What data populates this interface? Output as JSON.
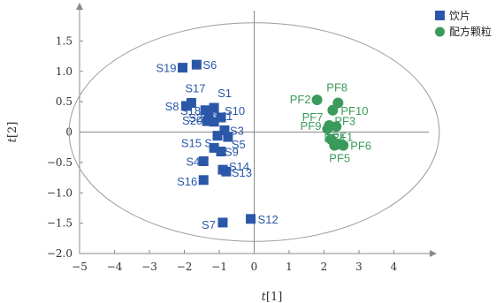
{
  "chart_data": {
    "type": "scatter",
    "xlabel": "t[1]",
    "ylabel": "t[2]",
    "xlim": [
      -5,
      5
    ],
    "ylim": [
      -2.0,
      2.0
    ],
    "xticks": [
      -5,
      -4,
      -3,
      -2,
      -1,
      0,
      1,
      2,
      3,
      4
    ],
    "yticks": [
      -2.0,
      -1.5,
      -1.0,
      -0.5,
      0,
      0.5,
      1.0,
      1.5
    ],
    "xtick_labels": [
      "−5",
      "−4",
      "−3",
      "−2",
      "−1",
      "0",
      "1",
      "2",
      "3",
      "4"
    ],
    "ytick_labels": [
      "−2.0",
      "−1.5",
      "−1.0",
      "−0.5",
      "0",
      "0.5",
      "1.0",
      "1.5"
    ],
    "ellipse": {
      "cx": 0,
      "cy": 0,
      "rx": 5.3,
      "ry": 1.8
    },
    "legend_position": "top-right",
    "series": [
      {
        "name": "饮片",
        "marker": "square",
        "color": "#2b57a8",
        "points": [
          {
            "label": "S1",
            "x": -1.15,
            "y": 0.4
          },
          {
            "label": "S2",
            "x": -1.4,
            "y": 0.36
          },
          {
            "label": "S3",
            "x": -0.85,
            "y": 0.03
          },
          {
            "label": "S4",
            "x": -1.45,
            "y": -0.48
          },
          {
            "label": "S5",
            "x": -0.75,
            "y": -0.08
          },
          {
            "label": "S6",
            "x": -1.65,
            "y": 1.11
          },
          {
            "label": "S7",
            "x": -0.9,
            "y": -1.49
          },
          {
            "label": "S8",
            "x": -1.95,
            "y": 0.43
          },
          {
            "label": "S9",
            "x": -0.95,
            "y": -0.32
          },
          {
            "label": "S10",
            "x": -0.95,
            "y": 0.24
          },
          {
            "label": "S11",
            "x": -1.15,
            "y": 0.17
          },
          {
            "label": "S12",
            "x": -0.1,
            "y": -1.43
          },
          {
            "label": "S13",
            "x": -0.8,
            "y": -0.65
          },
          {
            "label": "S14",
            "x": -0.9,
            "y": -0.62
          },
          {
            "label": "S15",
            "x": -1.05,
            "y": -0.06
          },
          {
            "label": "S16",
            "x": -1.45,
            "y": -0.79
          },
          {
            "label": "S17",
            "x": -1.8,
            "y": 0.48
          },
          {
            "label": "S18",
            "x": -1.3,
            "y": 0.27
          },
          {
            "label": "S19",
            "x": -2.05,
            "y": 1.06
          },
          {
            "label": "S20",
            "x": -1.35,
            "y": 0.18
          },
          {
            "label": "S",
            "x": -1.15,
            "y": -0.26
          }
        ]
      },
      {
        "name": "配方颗粒",
        "marker": "circle",
        "color": "#3a9a5b",
        "points": [
          {
            "label": "PF1",
            "x": 2.3,
            "y": -0.22
          },
          {
            "label": "PF2",
            "x": 1.8,
            "y": 0.53
          },
          {
            "label": "PF3",
            "x": 2.35,
            "y": 0.09
          },
          {
            "label": "PF4",
            "x": 2.2,
            "y": -0.12
          },
          {
            "label": "PF5",
            "x": 2.4,
            "y": -0.2
          },
          {
            "label": "PF6",
            "x": 2.55,
            "y": -0.22
          },
          {
            "label": "PF7",
            "x": 2.15,
            "y": 0.11
          },
          {
            "label": "PF8",
            "x": 2.4,
            "y": 0.48
          },
          {
            "label": "PF9",
            "x": 2.1,
            "y": 0.05
          },
          {
            "label": "PF10",
            "x": 2.25,
            "y": 0.36
          }
        ]
      }
    ]
  }
}
